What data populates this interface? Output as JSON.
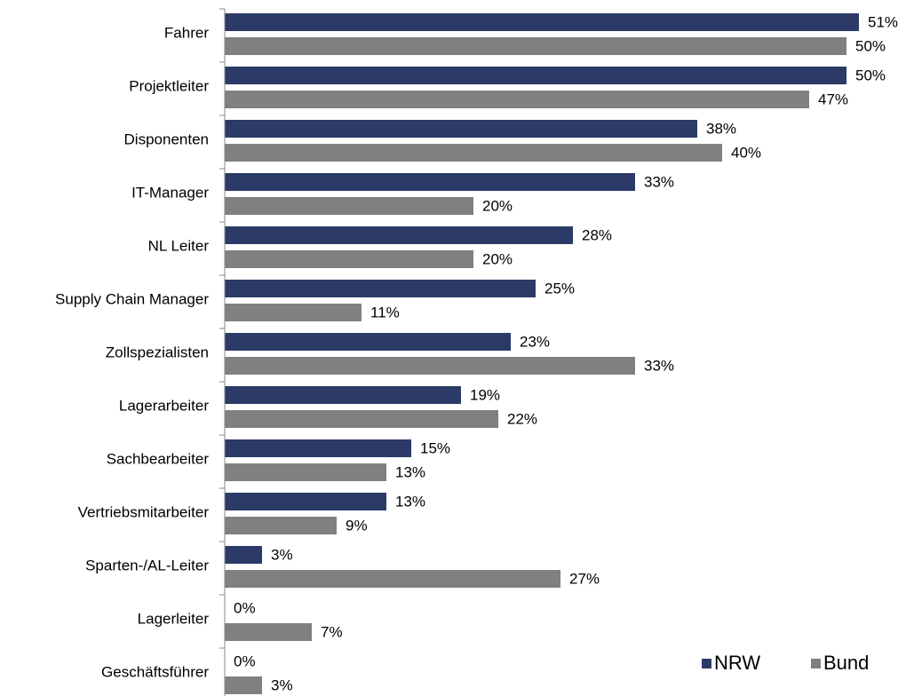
{
  "chart_data": {
    "type": "bar",
    "orientation": "horizontal",
    "categories": [
      "Fahrer",
      "Projektleiter",
      "Disponenten",
      "IT-Manager",
      "NL Leiter",
      "Supply Chain Manager",
      "Zollspezialisten",
      "Lagerarbeiter",
      "Sachbearbeiter",
      "Vertriebsmitarbeiter",
      "Sparten-/AL-Leiter",
      "Lagerleiter",
      "Geschäftsführer"
    ],
    "series": [
      {
        "name": "NRW",
        "color": "#2b3a67",
        "values": [
          51,
          50,
          38,
          33,
          28,
          25,
          23,
          19,
          15,
          13,
          3,
          0,
          0
        ],
        "value_labels": [
          "51%",
          "50%",
          "38%",
          "33%",
          "28%",
          "25%",
          "23%",
          "19%",
          "15%",
          "13%",
          "3%",
          "0%",
          "0%"
        ]
      },
      {
        "name": "Bund",
        "color": "#808080",
        "values": [
          50,
          47,
          40,
          20,
          20,
          11,
          33,
          22,
          13,
          9,
          27,
          7,
          3
        ],
        "value_labels": [
          "50%",
          "47%",
          "40%",
          "20%",
          "20%",
          "11%",
          "33%",
          "22%",
          "13%",
          "9%",
          "27%",
          "7%",
          "3%"
        ]
      }
    ],
    "legend": "lower right"
  }
}
